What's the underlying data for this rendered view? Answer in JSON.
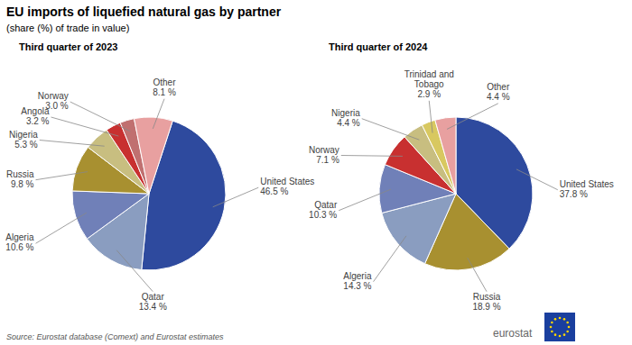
{
  "title": "EU imports of liquefied natural gas by partner",
  "subtitle": "(share (%) of trade in value)",
  "annotations": [
    "Source: Eurostat database (Comext) and Eurostat estimates",
    "eurostat"
  ],
  "chart_data": [
    {
      "type": "pie",
      "title": "Third quarter of 2023",
      "categories": [
        "United States",
        "Qatar",
        "Algeria",
        "Russia",
        "Nigeria",
        "Angola",
        "Norway",
        "Other"
      ],
      "values": [
        46.5,
        13.4,
        10.6,
        9.8,
        5.3,
        3.2,
        3.0,
        8.1
      ],
      "value_labels": [
        "46.5 %",
        "13.4 %",
        "10.6 %",
        "9.8 %",
        "5.3 %",
        "3.2 %",
        "3.0 %",
        "8.1 %"
      ],
      "colors": [
        "#2E4A9E",
        "#8A9DC0",
        "#7080B8",
        "#A89030",
        "#C8BE80",
        "#C83030",
        "#C07070",
        "#E8A0A0"
      ],
      "data_labels": true
    },
    {
      "type": "pie",
      "title": "Third quarter of 2024",
      "categories": [
        "United States",
        "Russia",
        "Algeria",
        "Qatar",
        "Norway",
        "Nigeria",
        "Trinidad and\nTobago",
        "Other"
      ],
      "values": [
        37.8,
        18.9,
        14.3,
        10.3,
        7.1,
        4.4,
        2.9,
        4.4
      ],
      "value_labels": [
        "37.8 %",
        "18.9 %",
        "14.3 %",
        "10.3 %",
        "7.1 %",
        "4.4 %",
        "2.9 %",
        "4.4 %"
      ],
      "colors": [
        "#2E4A9E",
        "#A89030",
        "#8A9DC0",
        "#7080B8",
        "#C83030",
        "#C8BE80",
        "#D8C860",
        "#E8A0A0"
      ],
      "data_labels": true
    }
  ]
}
